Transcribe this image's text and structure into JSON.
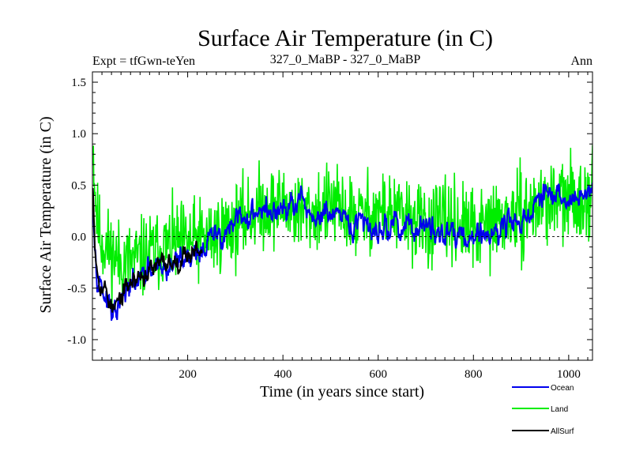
{
  "chart_data": {
    "type": "line",
    "title": "Surface Air Temperature (in C)",
    "header_left": "Expt = tfGwn-teYen",
    "header_center": "327_0_MaBP - 327_0_MaBP",
    "header_right": "Ann",
    "xlabel": "Time (in years since start)",
    "ylabel": "Surface Air Temperature (in C)",
    "xlim": [
      0,
      1050
    ],
    "ylim": [
      -1.2,
      1.6
    ],
    "xticks": [
      200,
      400,
      600,
      800,
      1000
    ],
    "xtick_labels": [
      "200",
      "400",
      "600",
      "800",
      "1000"
    ],
    "yticks": [
      -1.0,
      -0.5,
      0.0,
      0.5,
      1.0,
      1.5
    ],
    "ytick_labels": [
      "-1.0",
      "-0.5",
      "0.0",
      "0.5",
      "1.0",
      "1.5"
    ],
    "zero_line": 0.0,
    "series": [
      {
        "name": "Land",
        "color": "#00ee00",
        "x_range": [
          1,
          1050
        ],
        "anchors": [
          [
            0,
            1.05
          ],
          [
            5,
            0.5
          ],
          [
            10,
            0.15
          ],
          [
            20,
            -0.05
          ],
          [
            40,
            -0.15
          ],
          [
            60,
            -0.25
          ],
          [
            100,
            -0.22
          ],
          [
            150,
            -0.1
          ],
          [
            200,
            -0.05
          ],
          [
            250,
            0.0
          ],
          [
            300,
            0.12
          ],
          [
            350,
            0.28
          ],
          [
            400,
            0.3
          ],
          [
            450,
            0.22
          ],
          [
            500,
            0.3
          ],
          [
            550,
            0.18
          ],
          [
            600,
            0.25
          ],
          [
            650,
            0.2
          ],
          [
            700,
            0.1
          ],
          [
            750,
            0.15
          ],
          [
            800,
            0.05
          ],
          [
            850,
            0.15
          ],
          [
            900,
            0.2
          ],
          [
            950,
            0.35
          ],
          [
            1000,
            0.35
          ],
          [
            1050,
            0.45
          ]
        ],
        "amplitude": 0.28
      },
      {
        "name": "Ocean",
        "color": "#0000ee",
        "x_range": [
          1,
          1050
        ],
        "anchors": [
          [
            0,
            0.7
          ],
          [
            3,
            0.2
          ],
          [
            8,
            -0.25
          ],
          [
            15,
            -0.4
          ],
          [
            25,
            -0.55
          ],
          [
            35,
            -0.7
          ],
          [
            40,
            -0.78
          ],
          [
            50,
            -0.75
          ],
          [
            60,
            -0.65
          ],
          [
            80,
            -0.5
          ],
          [
            100,
            -0.42
          ],
          [
            130,
            -0.35
          ],
          [
            160,
            -0.3
          ],
          [
            180,
            -0.22
          ],
          [
            200,
            -0.18
          ],
          [
            230,
            -0.12
          ],
          [
            260,
            0.0
          ],
          [
            300,
            0.1
          ],
          [
            350,
            0.28
          ],
          [
            380,
            0.22
          ],
          [
            400,
            0.25
          ],
          [
            430,
            0.3
          ],
          [
            470,
            0.18
          ],
          [
            500,
            0.22
          ],
          [
            530,
            0.1
          ],
          [
            560,
            0.12
          ],
          [
            600,
            0.08
          ],
          [
            640,
            0.12
          ],
          [
            680,
            0.08
          ],
          [
            720,
            0.05
          ],
          [
            760,
            0.05
          ],
          [
            800,
            0.0
          ],
          [
            840,
            0.05
          ],
          [
            880,
            0.15
          ],
          [
            920,
            0.2
          ],
          [
            950,
            0.42
          ],
          [
            980,
            0.35
          ],
          [
            1010,
            0.35
          ],
          [
            1040,
            0.5
          ],
          [
            1050,
            0.45
          ]
        ],
        "amplitude": 0.07
      },
      {
        "name": "AllSurf",
        "color": "#000000",
        "x_range": [
          1,
          230
        ],
        "anchors": [
          [
            0,
            0.7
          ],
          [
            5,
            0.0
          ],
          [
            10,
            -0.3
          ],
          [
            20,
            -0.45
          ],
          [
            35,
            -0.6
          ],
          [
            45,
            -0.72
          ],
          [
            60,
            -0.6
          ],
          [
            80,
            -0.45
          ],
          [
            100,
            -0.38
          ],
          [
            130,
            -0.32
          ],
          [
            160,
            -0.25
          ],
          [
            190,
            -0.18
          ],
          [
            210,
            -0.13
          ],
          [
            230,
            -0.1
          ]
        ],
        "amplitude": 0.06
      }
    ],
    "legend": {
      "position": "bottom-right",
      "entries": [
        {
          "label": "Ocean",
          "color": "#0000ee"
        },
        {
          "label": "Land",
          "color": "#00ee00"
        },
        {
          "label": "AllSurf",
          "color": "#000000"
        }
      ]
    }
  }
}
